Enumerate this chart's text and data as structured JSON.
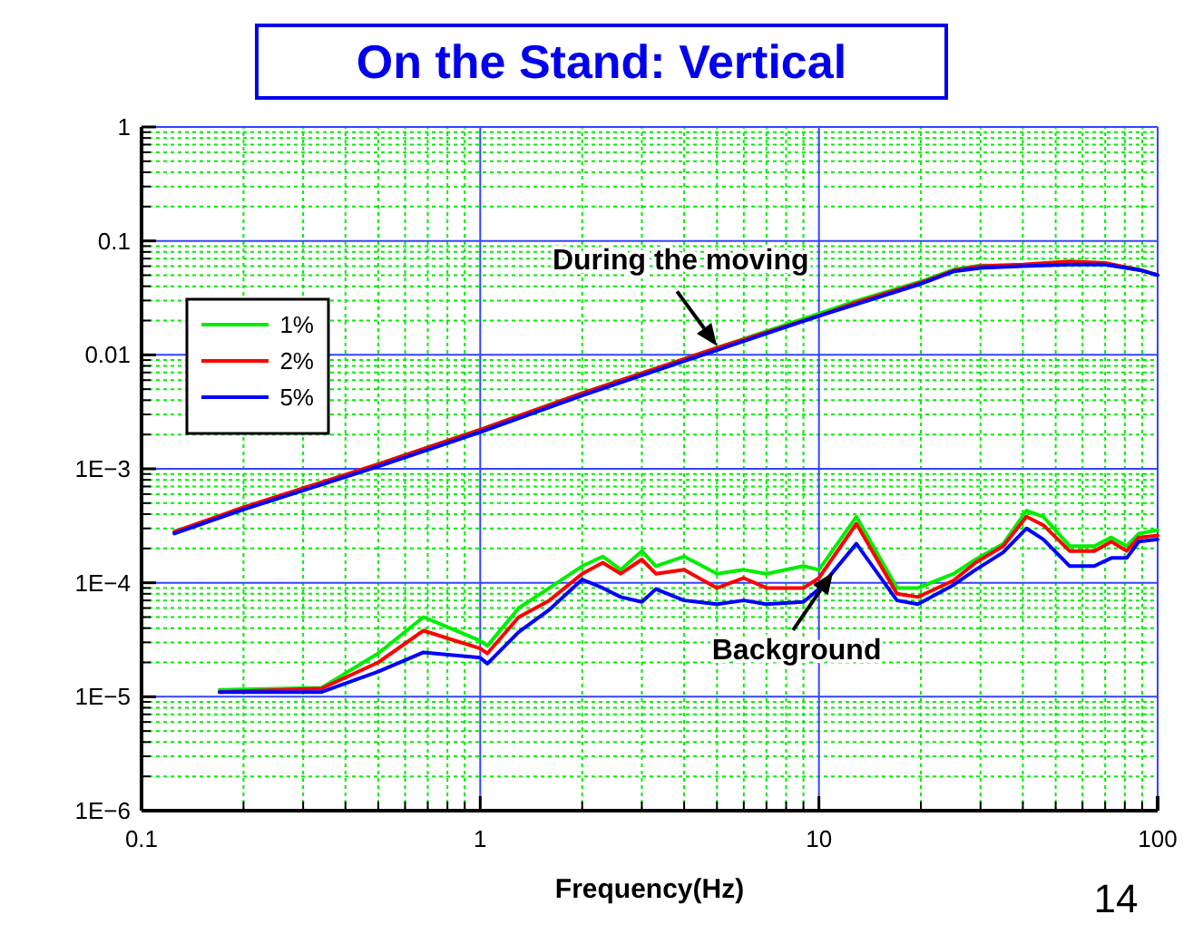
{
  "chart_data": {
    "type": "line",
    "title": "On the Stand: Vertical",
    "xlabel": "Frequency(Hz)",
    "log": "xy",
    "grid": true,
    "legend": "top left",
    "xlim": [
      0.1,
      100
    ],
    "xticks": [
      0.1,
      {
        "value": 0.2,
        "label": null
      },
      {
        "value": 0.3,
        "label": null
      },
      {
        "value": 0.4,
        "label": null
      },
      {
        "value": 0.5,
        "label": null
      },
      {
        "value": 0.6,
        "label": null
      },
      {
        "value": 0.7,
        "label": null
      },
      {
        "value": 0.8,
        "label": null
      },
      {
        "value": 0.9,
        "label": null
      },
      1,
      {
        "value": 2,
        "label": null
      },
      {
        "value": 3,
        "label": null
      },
      {
        "value": 4,
        "label": null
      },
      {
        "value": 5,
        "label": null
      },
      {
        "value": 6,
        "label": null
      },
      {
        "value": 7,
        "label": null
      },
      {
        "value": 8,
        "label": null
      },
      {
        "value": 9,
        "label": null
      },
      10,
      {
        "value": 20,
        "label": null
      },
      {
        "value": 30,
        "label": null
      },
      {
        "value": 40,
        "label": null
      },
      {
        "value": 50,
        "label": null
      },
      {
        "value": 60,
        "label": null
      },
      {
        "value": 70,
        "label": null
      },
      {
        "value": 80,
        "label": null
      },
      {
        "value": 90,
        "label": null
      },
      100
    ],
    "ylim": [
      1e-06,
      1
    ],
    "yticks": [
      {
        "value": 1e-06,
        "label": "1E−6"
      },
      {
        "value": 2e-06,
        "label": null
      },
      {
        "value": 3e-06,
        "label": null
      },
      {
        "value": 4e-06,
        "label": null
      },
      {
        "value": 5e-06,
        "label": null
      },
      {
        "value": 6e-06,
        "label": null
      },
      {
        "value": 7e-06,
        "label": null
      },
      {
        "value": 8e-06,
        "label": null
      },
      {
        "value": 9e-06,
        "label": null
      },
      {
        "value": 1e-05,
        "label": "1E−5"
      },
      {
        "value": 2e-05,
        "label": null
      },
      {
        "value": 3e-05,
        "label": null
      },
      {
        "value": 4e-05,
        "label": null
      },
      {
        "value": 5e-05,
        "label": null
      },
      {
        "value": 6e-05,
        "label": null
      },
      {
        "value": 7e-05,
        "label": null
      },
      {
        "value": 8e-05,
        "label": null
      },
      {
        "value": 9e-05,
        "label": null
      },
      {
        "value": 0.0001,
        "label": "1E−4"
      },
      {
        "value": 0.0002,
        "label": null
      },
      {
        "value": 0.0003,
        "label": null
      },
      {
        "value": 0.0004,
        "label": null
      },
      {
        "value": 0.0005,
        "label": null
      },
      {
        "value": 0.0006,
        "label": null
      },
      {
        "value": 0.0007,
        "label": null
      },
      {
        "value": 0.0008,
        "label": null
      },
      {
        "value": 0.0009,
        "label": null
      },
      {
        "value": 0.001,
        "label": "1E−3"
      },
      {
        "value": 0.002,
        "label": null
      },
      {
        "value": 0.003,
        "label": null
      },
      {
        "value": 0.004,
        "label": null
      },
      {
        "value": 0.005,
        "label": null
      },
      {
        "value": 0.006,
        "label": null
      },
      {
        "value": 0.007,
        "label": null
      },
      {
        "value": 0.008,
        "label": null
      },
      {
        "value": 0.009,
        "label": null
      },
      0.01,
      {
        "value": 0.02,
        "label": null
      },
      {
        "value": 0.03,
        "label": null
      },
      {
        "value": 0.04,
        "label": null
      },
      {
        "value": 0.05,
        "label": null
      },
      {
        "value": 0.06,
        "label": null
      },
      {
        "value": 0.07,
        "label": null
      },
      {
        "value": 0.08,
        "label": null
      },
      {
        "value": 0.09,
        "label": null
      },
      0.1,
      {
        "value": 0.2,
        "label": null
      },
      {
        "value": 0.3,
        "label": null
      },
      {
        "value": 0.4,
        "label": null
      },
      {
        "value": 0.5,
        "label": null
      },
      {
        "value": 0.6,
        "label": null
      },
      {
        "value": 0.7,
        "label": null
      },
      {
        "value": 0.8,
        "label": null
      },
      {
        "value": 0.9,
        "label": null
      },
      1
    ],
    "annotations": [
      {
        "text": "During the moving",
        "x": 5,
        "y": 0.012
      },
      {
        "text": "Background",
        "x": 11,
        "y": 0.000124
      },
      "14"
    ],
    "series": [
      {
        "name": "1%",
        "color": "#00ee00",
        "x": [
          0.125,
          0.2,
          0.5,
          1,
          2,
          5,
          10,
          13,
          20,
          25,
          30,
          40,
          55,
          70,
          90,
          100
        ],
        "values": [
          0.00028,
          0.00045,
          0.0011,
          0.0022,
          0.0046,
          0.0115,
          0.023,
          0.03,
          0.044,
          0.056,
          0.061,
          0.061,
          0.064,
          0.062,
          0.055,
          0.05
        ]
      },
      {
        "name": "2%",
        "color": "#ff0000",
        "x": [
          0.125,
          0.2,
          0.5,
          1,
          2,
          5,
          10,
          13,
          20,
          25,
          30,
          40,
          55,
          70,
          90,
          100
        ],
        "values": [
          0.00028,
          0.00046,
          0.0011,
          0.0022,
          0.0046,
          0.0115,
          0.022,
          0.029,
          0.043,
          0.055,
          0.06,
          0.062,
          0.066,
          0.064,
          0.055,
          0.05
        ]
      },
      {
        "name": "5%",
        "color": "#0000ff",
        "x": [
          0.125,
          0.2,
          0.5,
          1,
          2,
          5,
          10,
          13,
          20,
          25,
          30,
          40,
          55,
          70,
          90,
          100
        ],
        "values": [
          0.00027,
          0.00044,
          0.00105,
          0.0021,
          0.0044,
          0.011,
          0.022,
          0.028,
          0.042,
          0.054,
          0.058,
          0.06,
          0.062,
          0.062,
          0.055,
          0.05
        ]
      },
      {
        "color": "#00ee00",
        "x": [
          0.17,
          0.34,
          0.5,
          0.68,
          1,
          1.05,
          1.3,
          1.6,
          2,
          2.3,
          2.6,
          3,
          3.3,
          4,
          5,
          6,
          7,
          9,
          10,
          12.9,
          17,
          19.6,
          25,
          29,
          35,
          41,
          46,
          55,
          65,
          73,
          81,
          88,
          100
        ],
        "values": [
          1.15e-05,
          1.2e-05,
          2.4e-05,
          5e-05,
          3.1e-05,
          2.8e-05,
          6e-05,
          9e-05,
          0.00014,
          0.00017,
          0.00013,
          0.00019,
          0.00014,
          0.00017,
          0.00012,
          0.00013,
          0.00012,
          0.00014,
          0.00013,
          0.00038,
          9e-05,
          9e-05,
          0.00012,
          0.00016,
          0.00022,
          0.00043,
          0.00038,
          0.00021,
          0.00021,
          0.00025,
          0.00021,
          0.00027,
          0.00029
        ]
      },
      {
        "color": "#ff0000",
        "x": [
          0.17,
          0.34,
          0.5,
          0.68,
          1,
          1.05,
          1.3,
          1.6,
          2,
          2.3,
          2.6,
          3,
          3.3,
          4,
          5,
          6,
          7,
          9,
          10,
          12.9,
          17,
          19.6,
          25,
          29,
          35,
          41,
          46,
          55,
          65,
          73,
          81,
          88,
          100
        ],
        "values": [
          1.1e-05,
          1.18e-05,
          2e-05,
          3.8e-05,
          2.65e-05,
          2.4e-05,
          5e-05,
          7e-05,
          0.00012,
          0.00015,
          0.00012,
          0.00016,
          0.00012,
          0.00013,
          9e-05,
          0.00011,
          9e-05,
          9e-05,
          0.00011,
          0.00033,
          8e-05,
          7.5e-05,
          0.000105,
          0.00015,
          0.00021,
          0.00038,
          0.00032,
          0.00019,
          0.00019,
          0.00023,
          0.00019,
          0.00025,
          0.00026
        ]
      },
      {
        "color": "#0000ff",
        "x": [
          0.17,
          0.34,
          0.5,
          0.68,
          1,
          1.05,
          1.3,
          1.6,
          2,
          2.3,
          2.6,
          3,
          3.3,
          4,
          5,
          6,
          7,
          9,
          10,
          12.9,
          17,
          19.6,
          25,
          29,
          35,
          41,
          46,
          55,
          65,
          73,
          81,
          88,
          100
        ],
        "values": [
          1.1e-05,
          1.1e-05,
          1.66e-05,
          2.45e-05,
          2.2e-05,
          1.95e-05,
          3.7e-05,
          5.8e-05,
          0.000107,
          9e-05,
          7.5e-05,
          6.8e-05,
          8.8e-05,
          7e-05,
          6.5e-05,
          7e-05,
          6.5e-05,
          6.8e-05,
          8.8e-05,
          0.00022,
          7e-05,
          6.5e-05,
          9.6e-05,
          0.00013,
          0.000185,
          0.0003,
          0.00024,
          0.00014,
          0.00014,
          0.000165,
          0.000165,
          0.00023,
          0.00024
        ]
      }
    ]
  }
}
